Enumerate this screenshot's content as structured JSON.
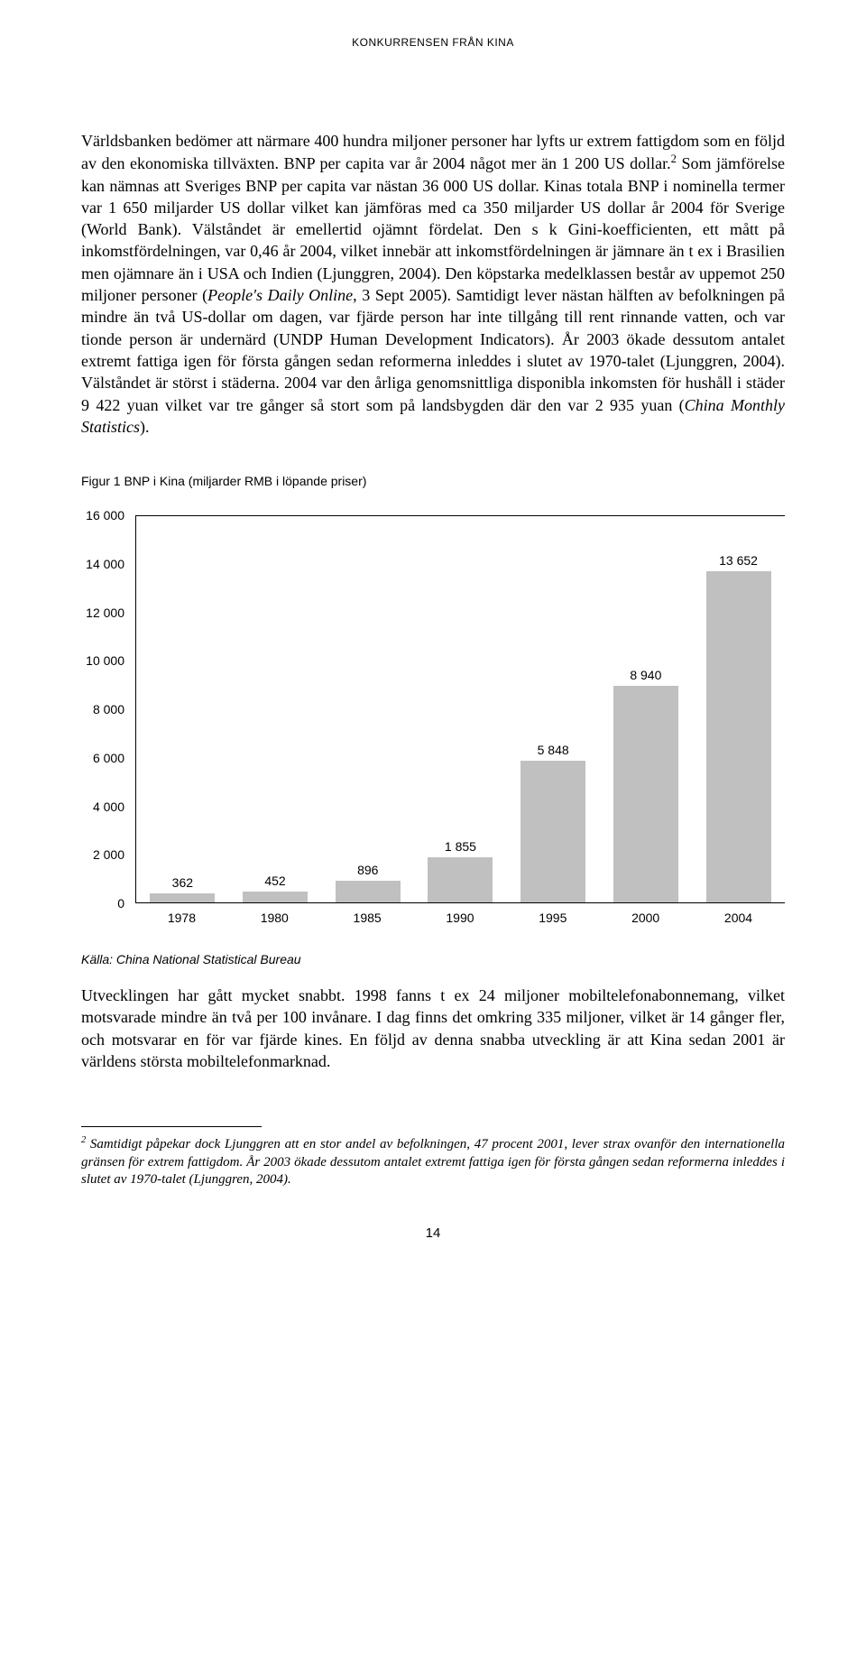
{
  "header": "KONKURRENSEN FRÅN KINA",
  "paragraph1_html": "Världsbanken bedömer att närmare 400 hundra miljoner personer har lyfts ur extrem fattigdom som en följd av den ekonomiska tillväxten. BNP per capita var år 2004 något mer än 1 200 US dollar.<sup>2</sup> Som jämförelse kan nämnas att Sveriges BNP per capita var nästan 36 000 US dollar. Kinas totala BNP i nominella termer var 1 650 miljarder US dollar vilket kan jämföras med ca 350 miljarder US dollar år 2004 för Sverige (World Bank). Välståndet är emellertid ojämnt fördelat. Den s k Gini-koefficienten, ett mått på inkomstfördelningen, var 0,46 år 2004, vilket innebär att inkomstfördelningen är jämnare än t ex i Brasilien men ojämnare än i USA och Indien (Ljunggren, 2004). Den köpstarka medelklassen består av uppemot 250 miljoner personer (<span class=\"italic\">People's Daily Online</span>, 3 Sept 2005). Samtidigt lever nästan hälften av befolkningen på mindre än två US-dollar om dagen, var fjärde person har inte tillgång till rent rinnande vatten, och var tionde person är undernärd (UNDP Human Development Indicators). År 2003 ökade dessutom antalet extremt fattiga igen för första gången sedan reformerna inleddes i slutet av 1970-talet (Ljunggren, 2004). Välståndet är störst i städerna. 2004 var den årliga genomsnittliga disponibla inkomsten för hushåll i städer 9 422 yuan vilket var tre gånger så stort som på landsbygden där den var 2 935 yuan (<span class=\"italic\">China Monthly Statistics</span>).",
  "figure_title": "Figur 1 BNP i Kina (miljarder RMB i löpande priser)",
  "chart": {
    "type": "bar",
    "ylim": [
      0,
      16000
    ],
    "ytick_step": 2000,
    "yticks": [
      "0",
      "2 000",
      "4 000",
      "6 000",
      "8 000",
      "10 000",
      "12 000",
      "14 000",
      "16 000"
    ],
    "categories": [
      "1978",
      "1980",
      "1985",
      "1990",
      "1995",
      "2000",
      "2004"
    ],
    "values": [
      362,
      452,
      896,
      1855,
      5848,
      8940,
      13652
    ],
    "value_labels": [
      "362",
      "452",
      "896",
      "1 855",
      "5 848",
      "8 940",
      "13 652"
    ],
    "bar_color": "#c0c0c0",
    "axis_color": "#000000",
    "label_fontsize": 14,
    "background_color": "#ffffff"
  },
  "source": "Källa: China National Statistical Bureau",
  "paragraph2": "Utvecklingen har gått mycket snabbt. 1998 fanns t ex 24 miljoner mobiltelefonabonnemang, vilket motsvarade mindre än två per 100 invånare. I dag finns det omkring 335 miljoner, vilket är 14 gånger fler, och motsvarar en för var fjärde kines. En följd av denna snabba utveckling är att Kina sedan 2001 är världens största mobiltelefonmarknad.",
  "footnote_html": "<sup>2</sup> Samtidigt påpekar dock Ljunggren att en stor andel av befolkningen, 47 procent 2001, lever strax ovanför den internationella gränsen för extrem fattigdom. År 2003 ökade dessutom antalet extremt fattiga igen för första gången sedan reformerna inleddes i slutet av 1970-talet (Ljunggren, 2004).",
  "page_number": "14"
}
